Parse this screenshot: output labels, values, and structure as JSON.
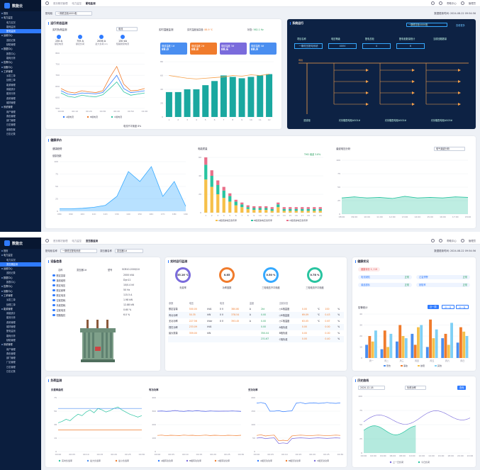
{
  "app": {
    "name": "数能云"
  },
  "nav1": [
    {
      "label": "首页",
      "grp": true
    },
    {
      "label": "电力监控",
      "grp": true
    },
    {
      "label": "电力实况"
    },
    {
      "label": "能耗监测"
    },
    {
      "label": "配电监测",
      "active": true
    },
    {
      "label": "运维中心",
      "grp": true
    },
    {
      "label": "巡检记录"
    },
    {
      "label": "缺陷管理"
    },
    {
      "label": "数据中心",
      "grp": true
    },
    {
      "label": "报表中心"
    },
    {
      "label": "能耗分析"
    },
    {
      "label": "告警中心",
      "grp": true
    },
    {
      "label": "设备中心",
      "grp": true
    },
    {
      "label": "工单管理",
      "grp": true
    },
    {
      "label": "派发工单"
    },
    {
      "label": "处理工单"
    },
    {
      "label": "能源管理"
    },
    {
      "label": "用能统计"
    },
    {
      "label": "能效分析"
    },
    {
      "label": "费用管理"
    },
    {
      "label": "碳排管理"
    },
    {
      "label": "系统管理",
      "grp": true
    },
    {
      "label": "用户管理"
    },
    {
      "label": "角色管理"
    },
    {
      "label": "部门管理"
    },
    {
      "label": "日志管理"
    },
    {
      "label": "参数配置"
    },
    {
      "label": "日志记录"
    }
  ],
  "nav2": [
    {
      "label": "首页",
      "grp": true
    },
    {
      "label": "电力监控",
      "grp": true
    },
    {
      "label": "电力实况"
    },
    {
      "label": "变压器监测",
      "active": true
    },
    {
      "label": "运维中心",
      "grp": true
    },
    {
      "label": "巡检记录"
    },
    {
      "label": "数据中心",
      "grp": true
    },
    {
      "label": "报表中心"
    },
    {
      "label": "告警中心",
      "grp": true
    },
    {
      "label": "设备中心",
      "grp": true
    },
    {
      "label": "工单管理",
      "grp": true
    },
    {
      "label": "派发工单"
    },
    {
      "label": "处理工单"
    },
    {
      "label": "能源管理",
      "grp": true
    },
    {
      "label": "用能统计"
    },
    {
      "label": "能效分析"
    },
    {
      "label": "费用管理"
    },
    {
      "label": "碳排管理"
    },
    {
      "label": "配电监测"
    },
    {
      "label": "能耗分析"
    },
    {
      "label": "缺陷管理"
    },
    {
      "label": "系统管理",
      "grp": true
    },
    {
      "label": "用户管理"
    },
    {
      "label": "角色管理"
    },
    {
      "label": "部门管理"
    },
    {
      "label": "厂区管理"
    },
    {
      "label": "日志管理"
    },
    {
      "label": "日志记录"
    }
  ],
  "top1": {
    "crumbs": [
      "首页概况管理",
      "电力监控",
      "配电监测"
    ],
    "user": "管理员",
    "link": "帮助中心"
  },
  "top2": {
    "crumbs": [
      "首页概况管理",
      "电力监控",
      "变压器监测"
    ],
    "user": "管理员",
    "link": "帮助中心"
  },
  "filter1": {
    "label": "配电柜",
    "value": "一期低压柜400V柜",
    "time_label": "数据更新时间:",
    "time": "2024-08-22 09:54:56"
  },
  "filter2": {
    "label1": "配电柜名称",
    "value1": "一期低压配电系统",
    "label2": "变压器名称",
    "value2": "变压器1#",
    "time_label": "数据更新时间:",
    "time": "2024-08-22 09:54:56"
  },
  "w1": {
    "status": {
      "title": "运行状态监测",
      "sub1": "实时负荷监测",
      "select": "电流",
      "sub2": "实时温度监测",
      "temp_label": "实时温度最高值:",
      "temp_value": "88.9 ℃",
      "status_label": "状态:",
      "status_value": "562.1 Hz",
      "kpis": [
        {
          "v": "230 A",
          "l": "额定电流"
        },
        {
          "v": "755 A",
          "l": "额定负荷"
        },
        {
          "v": "2036 A",
          "l": "最大负荷 (A)"
        },
        {
          "v": "130 kA",
          "l": "短路耐受电流"
        }
      ],
      "temps": [
        {
          "name": "母线温度 1#",
          "v": "88.0",
          "c": "#4a8ef0"
        },
        {
          "name": "母线温度 2#",
          "v": "88.8",
          "c": "#f07b2c"
        },
        {
          "name": "母线温度 3#",
          "v": "88.6",
          "c": "#7a6bdc"
        },
        {
          "name": "母线温度 4#",
          "v": "88.9",
          "c": "#4a8ef0"
        }
      ],
      "load_note": "电流不平衡度 8%"
    },
    "system": {
      "title": "系统运行",
      "select": "一期低压柜400V柜",
      "link": "查看更多",
      "heads": [
        "项目名称",
        "电压等级",
        "配电总柜",
        "配电柜数量统计",
        "当前回路数量"
      ],
      "vals": [
        "一期低压配电系统",
        "400V",
        "4",
        "6"
      ],
      "incoming": "进线柜",
      "outs": [
        "光伏箱配电柜AG01#",
        "光伏箱配电柜AG02#",
        "光伏箱配电柜AG03#"
      ],
      "bus_label": "母线"
    },
    "health": {
      "title": "健康评价",
      "sub1": "健康趋势",
      "sub2": "电能质量",
      "sub3": "谐波电压分析",
      "ylabel": "健康指数",
      "hstatus": "THD 谐波 3.6%",
      "hselect": "电气谐波分析"
    }
  },
  "w2": {
    "device": {
      "title": "设备信息",
      "rows": [
        {
          "k": "名称",
          "v": "变压器1#"
        },
        {
          "k": "型号",
          "v": "SCB10-2000/10"
        }
      ],
      "attrs": [
        {
          "k": "额定容量",
          "v": "2000 kVA"
        },
        {
          "k": "接线组别",
          "v": "Dyn11"
        },
        {
          "k": "额定电压",
          "v": "10/0.4 kV"
        },
        {
          "k": "额定频率",
          "v": "50 Hz"
        },
        {
          "k": "额定电流",
          "v": "115.5 A"
        },
        {
          "k": "空载损耗",
          "v": "1.98 kW"
        },
        {
          "k": "负载损耗",
          "v": "12.88 kW"
        },
        {
          "k": "空载电流",
          "v": "0.60 %"
        },
        {
          "k": "短路阻抗",
          "v": "6.0 %"
        }
      ]
    },
    "monitor": {
      "title": "实时运行监测",
      "rings": [
        {
          "v": "35.16 ℃",
          "l": "负载率",
          "c": "#7a6bdc"
        },
        {
          "v": "0.85",
          "l": "功率因数",
          "c": "#f07b2c"
        },
        {
          "v": "0.50 %",
          "l": "三相电压不平衡度",
          "c": "#35a9ff"
        },
        {
          "v": "0.78 %",
          "l": "三相电流不平衡度",
          "c": "#29c4a0"
        }
      ],
      "head": [
        "参数",
        "电压",
        "",
        "电流",
        "",
        "温度",
        "",
        "当前状态"
      ],
      "rows": [
        [
          "额定容量",
          "500.00",
          "kVA",
          "0 V",
          "380.80",
          "A",
          "2kt",
          "○A相温度",
          "0.00",
          "℃",
          "100",
          "%"
        ],
        [
          "有功功率",
          "50.35",
          "kW",
          "0 V",
          "378.54",
          "A",
          "0.00",
          "○B相温度",
          "69.09",
          "℃",
          "0.43",
          "%"
        ],
        [
          "无功功率",
          "227.56",
          "kVar",
          "0 V",
          "393.45",
          "A",
          "0.00",
          "○C相温度",
          "63.05",
          "℃",
          "0.67",
          "%"
        ],
        [
          "视在功率",
          "233.09",
          "kVA",
          "",
          "",
          "",
          "0.00",
          "A相负载",
          "0.00",
          "",
          "0.00",
          "%"
        ],
        [
          "最大需量",
          "359.00",
          "kW",
          "",
          "",
          "",
          "350.04",
          "B相负载",
          "0.00",
          "",
          "0.00",
          "%"
        ],
        [
          "",
          "",
          "",
          "",
          "",
          "",
          "231.67",
          "C相负载",
          "0.00",
          "",
          "0.40",
          "%"
        ]
      ]
    },
    "health": {
      "title": "健康状况",
      "score_label": "健康评分",
      "score": "1 / 10",
      "items": [
        {
          "l": "电流缺陷",
          "v": "正常"
        },
        {
          "l": "过温预警",
          "v": "正常"
        },
        {
          "l": "谐波超标",
          "v": "正常"
        },
        {
          "l": "缺陷率",
          "v": "正常"
        }
      ],
      "stat_title": "告警统计",
      "tabs": [
        "近一周",
        "近一月",
        "近一年"
      ],
      "cats": [
        "周一",
        "周二",
        "周三",
        "周四",
        "周五",
        "周六",
        "周日"
      ],
      "series": [
        {
          "name": "警告",
          "c": "#4a8ef0",
          "values": [
            12,
            8,
            15,
            22,
            10,
            18,
            14
          ]
        },
        {
          "name": "事故",
          "c": "#f07b2c",
          "values": [
            20,
            25,
            30,
            12,
            35,
            22,
            28
          ]
        },
        {
          "name": "故障",
          "c": "#f6c04a",
          "values": [
            15,
            10,
            20,
            28,
            18,
            12,
            24
          ]
        },
        {
          "name": "其他",
          "c": "#7fd0f5",
          "values": [
            25,
            22,
            18,
            30,
            26,
            32,
            20
          ]
        }
      ]
    },
    "load": {
      "title": "负荷监测",
      "c1": "负载率曲线",
      "c2": "有功功率",
      "c3": "无功功率",
      "legend1": [
        "实时负载率",
        "最大负载率",
        "最小负载率"
      ],
      "legend2": [
        "A相有功功率",
        "B相有功功率",
        "C相有功功率"
      ],
      "legend3": [
        "A相无功功率",
        "B相无功功率",
        "C相无功功率"
      ],
      "x": [
        "00:00",
        "00:05",
        "00:10",
        "00:15",
        "00:20",
        "00:25",
        "00:30"
      ]
    },
    "history": {
      "title": "历史曲线",
      "date": "2020-12-18",
      "select": "负荷功率",
      "btn": "查询",
      "x": [
        "00:00",
        "02:00",
        "04:00",
        "06:00",
        "08:00",
        "10:00",
        "12:00",
        "14:00",
        "16:00",
        "18:00",
        "20:00",
        "22:00"
      ],
      "legend": [
        "上一日负荷",
        "今日负荷"
      ]
    }
  },
  "chart_data": [
    {
      "type": "line",
      "title": "实时负荷监测",
      "x": [
        "00:00",
        "00:05",
        "00:10",
        "00:15",
        "00:20",
        "00:25",
        "00:30",
        "00:35",
        "00:40",
        "00:45",
        "00:50",
        "00:55",
        "01:00"
      ],
      "series": [
        {
          "name": "A相电流",
          "values": [
            630,
            615,
            612,
            620,
            618,
            616,
            622,
            660,
            700,
            640,
            622,
            625,
            630
          ]
        },
        {
          "name": "B相电流",
          "values": [
            640,
            625,
            620,
            630,
            625,
            622,
            630,
            690,
            740,
            660,
            630,
            632,
            640
          ]
        },
        {
          "name": "C相电流",
          "values": [
            620,
            605,
            600,
            610,
            605,
            603,
            612,
            640,
            670,
            625,
            610,
            615,
            620
          ]
        }
      ],
      "ylim": [
        550,
        800
      ]
    },
    {
      "type": "bar",
      "title": "实时温度监测",
      "categories": [
        "1",
        "2",
        "3",
        "4",
        "5",
        "6",
        "7",
        "8",
        "9",
        "10",
        "11",
        "12"
      ],
      "values": [
        36,
        36,
        40,
        40,
        46,
        52,
        60,
        58,
        56,
        58,
        60,
        62
      ],
      "line": [
        60,
        58,
        56,
        55,
        56,
        57,
        58,
        60,
        59,
        61,
        60,
        62
      ],
      "ylim": [
        0,
        80
      ]
    },
    {
      "type": "area",
      "title": "健康趋势",
      "x": [
        "08C",
        "09C",
        "10C",
        "11C",
        "12C",
        "13C",
        "14C",
        "15C",
        "16C",
        "17C",
        "18C",
        "19C"
      ],
      "values": [
        5,
        5,
        6,
        8,
        12,
        30,
        80,
        60,
        90,
        30,
        60,
        10
      ],
      "ylim": [
        0,
        100
      ]
    },
    {
      "type": "bar",
      "title": "电能质量",
      "categories": [
        "1",
        "2",
        "3",
        "4",
        "5",
        "6",
        "7",
        "8",
        "9",
        "10",
        "11",
        "12",
        "13",
        "14",
        "15",
        "16",
        "17",
        "18",
        "19",
        "20"
      ],
      "series": [
        {
          "name": "A相谐波电压含有率",
          "values": [
            36,
            28,
            20,
            16,
            12,
            8,
            6,
            4,
            3,
            3,
            3,
            2,
            6,
            2,
            2,
            2,
            2,
            2,
            2,
            2
          ]
        },
        {
          "name": "B相谐波电压含有率",
          "values": [
            16,
            12,
            10,
            8,
            6,
            4,
            3,
            2,
            2,
            2,
            2,
            2,
            3,
            2,
            2,
            2,
            2,
            2,
            2,
            2
          ]
        },
        {
          "name": "C相谐波电压含有率",
          "values": [
            8,
            6,
            5,
            4,
            3,
            2,
            2,
            2,
            2,
            2,
            2,
            2,
            2,
            2,
            2,
            2,
            2,
            2,
            2,
            2
          ]
        }
      ],
      "ylim": [
        0,
        60
      ]
    },
    {
      "type": "area",
      "title": "谐波电压分析",
      "x": [
        "08:00",
        "09:00",
        "10:00",
        "11:00",
        "12:00",
        "13:00",
        "14:00",
        "15:00",
        "16:00",
        "17:00",
        "18:00"
      ],
      "values": [
        30,
        32,
        30,
        31,
        29,
        33,
        30,
        31,
        30,
        32,
        31
      ],
      "ylim": [
        0,
        100
      ]
    }
  ]
}
